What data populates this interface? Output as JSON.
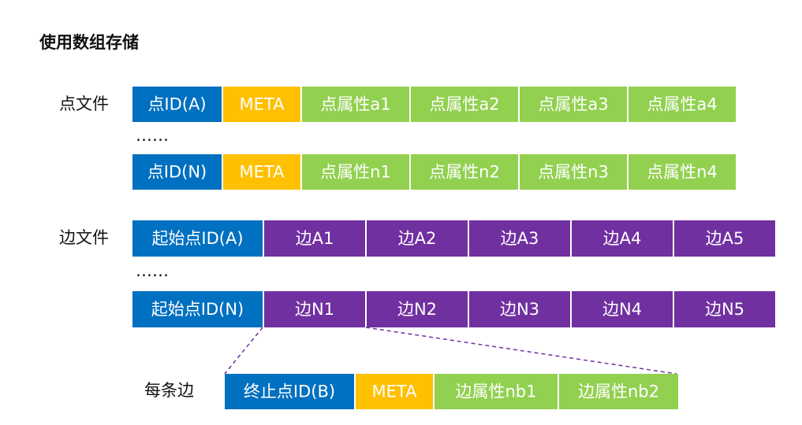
{
  "title": "使用数组存储",
  "vertex_file": {
    "label": "点文件",
    "rows": [
      [
        "点ID(A)",
        "META",
        "点属性a1",
        "点属性a2",
        "点属性a3",
        "点属性a4"
      ],
      [
        "点ID(N)",
        "META",
        "点属性n1",
        "点属性n2",
        "点属性n3",
        "点属性n4"
      ]
    ],
    "ellipsis": "……"
  },
  "edge_file": {
    "label": "边文件",
    "rows": [
      [
        "起始点ID(A)",
        "边A1",
        "边A2",
        "边A3",
        "边A4",
        "边A5"
      ],
      [
        "起始点ID(N)",
        "边N1",
        "边N2",
        "边N3",
        "边N4",
        "边N5"
      ]
    ],
    "ellipsis": "……"
  },
  "each_edge": {
    "label": "每条边",
    "cells": [
      "终止点ID(B)",
      "META",
      "边属性nb1",
      "边属性nb2"
    ]
  }
}
